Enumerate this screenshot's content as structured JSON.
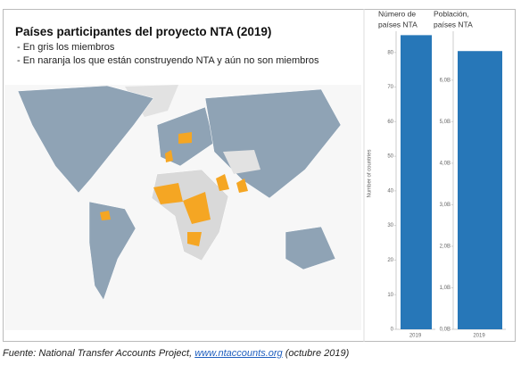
{
  "map": {
    "title": "Países participantes del proyecto NTA (2019)",
    "notes": [
      "- En gris los miembros",
      "- En naranja los que están construyendo NTA y aún no son miembros"
    ]
  },
  "chart_data": [
    {
      "type": "bar",
      "title": [
        "Número de",
        "países NTA"
      ],
      "y_label": "Number of countries",
      "categories": [
        "2019"
      ],
      "values": [
        85
      ],
      "color": "#2777b8",
      "ylim": [
        0,
        90
      ],
      "yticks": [
        0,
        10,
        20,
        30,
        40,
        50,
        60,
        70,
        80
      ]
    },
    {
      "type": "bar",
      "title": [
        "Población,",
        "países NTA"
      ],
      "categories": [
        "2019"
      ],
      "values": [
        6.7
      ],
      "color": "#2777b8",
      "ylim": [
        0,
        7.5
      ],
      "yticks": [
        {
          "value": 0,
          "label": "0,0B"
        },
        {
          "value": 1,
          "label": "1,0B"
        },
        {
          "value": 2,
          "label": "2,0B"
        },
        {
          "value": 3,
          "label": "3,0B"
        },
        {
          "value": 4,
          "label": "4,0B"
        },
        {
          "value": 5,
          "label": "5,0B"
        },
        {
          "value": 6,
          "label": "6,0B"
        }
      ]
    }
  ],
  "source": {
    "before": "Fuente: National Transfer Accounts Project, ",
    "link": "www.ntaccounts.org",
    "after": " (octubre 2019)"
  }
}
